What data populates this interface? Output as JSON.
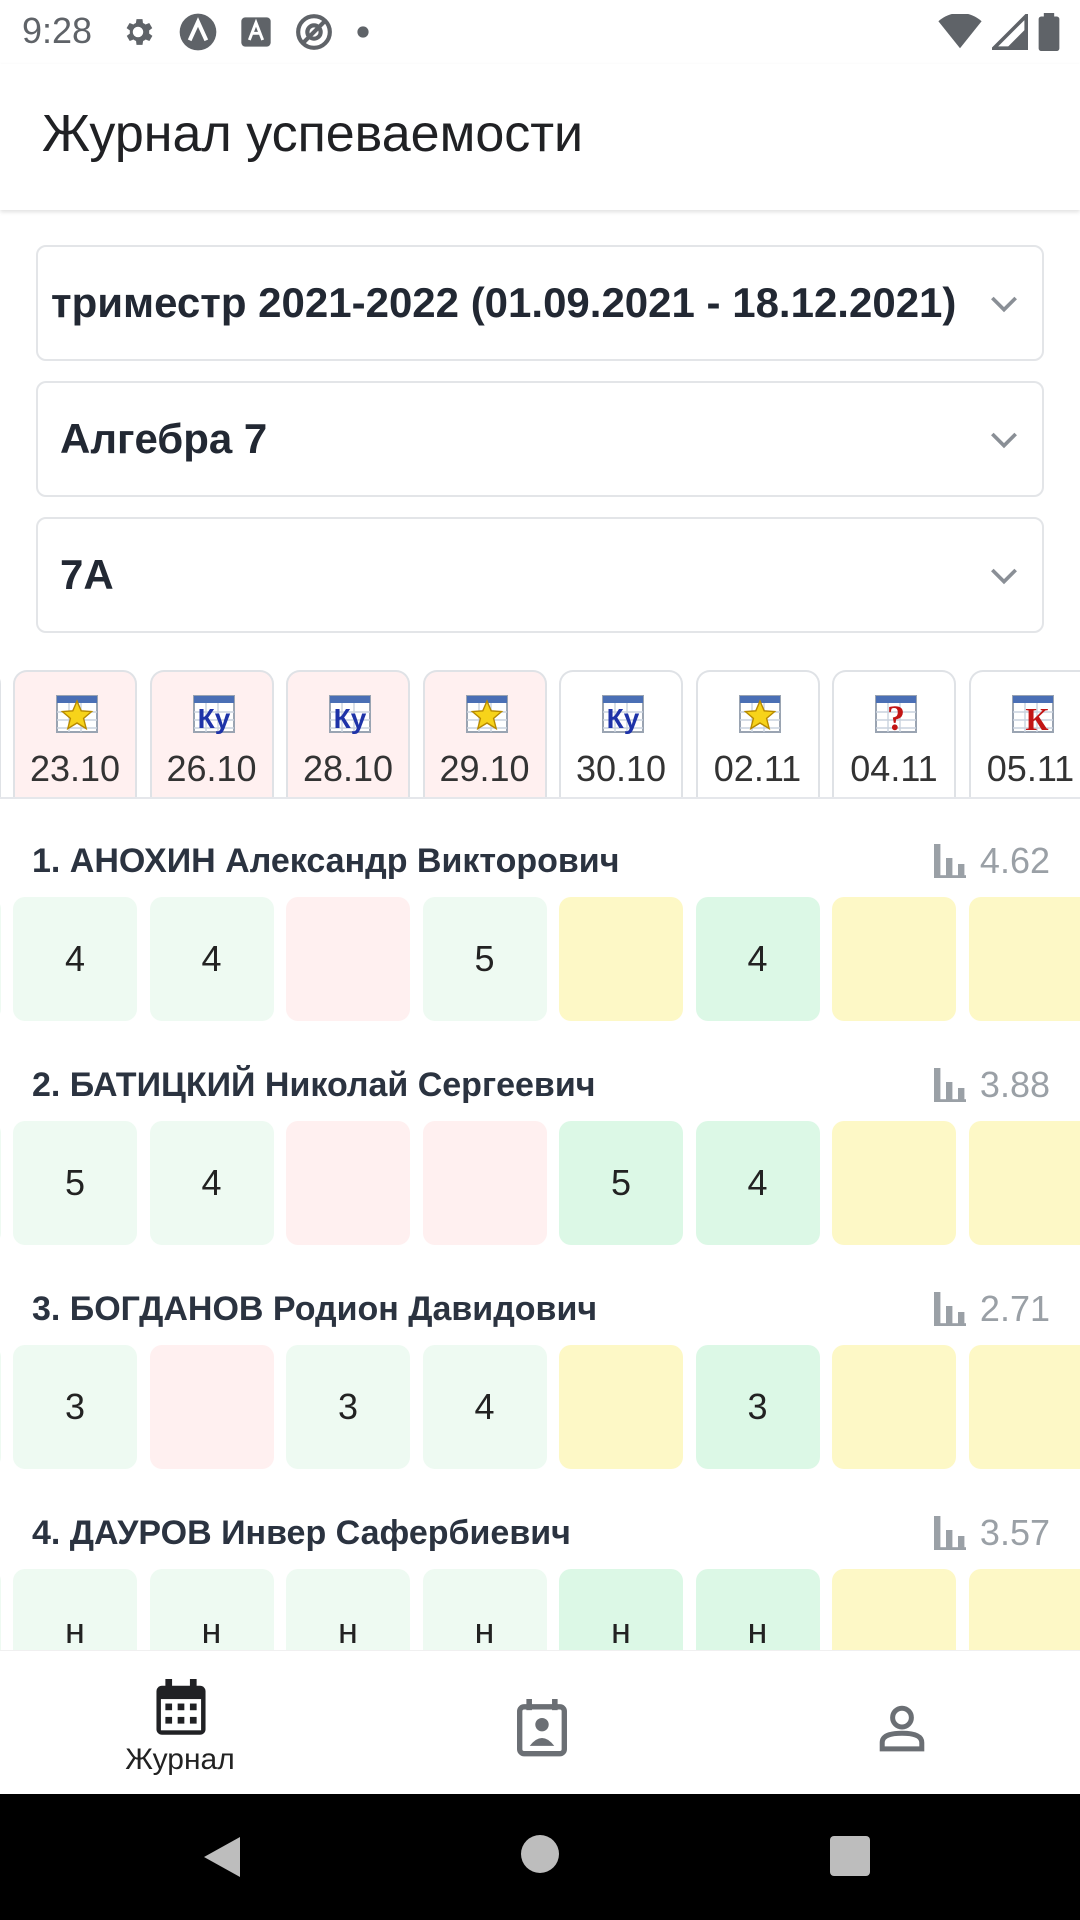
{
  "status_bar": {
    "time": "9:28",
    "icons_left": [
      "gear-icon",
      "arch-icon",
      "font-a-icon",
      "at-sign-icon",
      "dot-icon"
    ],
    "icons_right": [
      "wifi-icon",
      "signal-icon",
      "battery-icon"
    ]
  },
  "app_bar": {
    "title": "Журнал успеваемости"
  },
  "selects": {
    "period": "триместр 2021-2022 (01.09.2021 - 18.12.2021)",
    "subject": "Алгебра 7",
    "class": "7А"
  },
  "dates": [
    {
      "label": "23.10",
      "icon": "star-icon",
      "highlight": true
    },
    {
      "label": "26.10",
      "icon": "ku-icon",
      "highlight": true
    },
    {
      "label": "28.10",
      "icon": "ku-icon",
      "highlight": true
    },
    {
      "label": "29.10",
      "icon": "star-icon",
      "highlight": true
    },
    {
      "label": "30.10",
      "icon": "ku-icon",
      "highlight": false
    },
    {
      "label": "02.11",
      "icon": "star-icon",
      "highlight": false
    },
    {
      "label": "04.11",
      "icon": "question-icon",
      "highlight": false
    },
    {
      "label": "05.11",
      "icon": "k-icon",
      "highlight": false
    }
  ],
  "students": [
    {
      "name": "1. АНОХИН Александр Викторович",
      "avg": "4.62",
      "grades": [
        {
          "v": "4",
          "c": "lightgreen"
        },
        {
          "v": "4",
          "c": "lightgreen"
        },
        {
          "v": "",
          "c": "pink"
        },
        {
          "v": "5",
          "c": "lightgreen"
        },
        {
          "v": "",
          "c": "yellow"
        },
        {
          "v": "4",
          "c": "green"
        },
        {
          "v": "",
          "c": "yellow"
        },
        {
          "v": "",
          "c": "yellow"
        }
      ]
    },
    {
      "name": "2. БАТИЦКИЙ Николай Сергеевич",
      "avg": "3.88",
      "grades": [
        {
          "v": "5",
          "c": "lightgreen"
        },
        {
          "v": "4",
          "c": "lightgreen"
        },
        {
          "v": "",
          "c": "pink"
        },
        {
          "v": "",
          "c": "pink"
        },
        {
          "v": "5",
          "c": "green"
        },
        {
          "v": "4",
          "c": "green"
        },
        {
          "v": "",
          "c": "yellow"
        },
        {
          "v": "",
          "c": "yellow"
        }
      ]
    },
    {
      "name": "3. БОГДАНОВ Родион Давидович",
      "avg": "2.71",
      "grades": [
        {
          "v": "3",
          "c": "lightgreen"
        },
        {
          "v": "",
          "c": "pink"
        },
        {
          "v": "3",
          "c": "lightgreen"
        },
        {
          "v": "4",
          "c": "lightgreen"
        },
        {
          "v": "",
          "c": "yellow"
        },
        {
          "v": "3",
          "c": "green"
        },
        {
          "v": "",
          "c": "yellow"
        },
        {
          "v": "",
          "c": "yellow"
        }
      ]
    },
    {
      "name": "4. ДАУРОВ Инвер Сафербиевич",
      "avg": "3.57",
      "grades": [
        {
          "v": "н",
          "c": "lightgreen"
        },
        {
          "v": "н",
          "c": "lightgreen"
        },
        {
          "v": "н",
          "c": "lightgreen"
        },
        {
          "v": "н",
          "c": "lightgreen"
        },
        {
          "v": "н",
          "c": "green"
        },
        {
          "v": "н",
          "c": "green"
        },
        {
          "v": "",
          "c": "yellow"
        },
        {
          "v": "",
          "c": "yellow"
        }
      ]
    }
  ],
  "bottom_nav": [
    {
      "label": "Журнал",
      "icon": "calendar-icon",
      "active": true
    },
    {
      "label": "",
      "icon": "calendar-person-icon",
      "active": false
    },
    {
      "label": "",
      "icon": "person-icon",
      "active": false
    }
  ],
  "system_nav": [
    "back-icon",
    "home-icon",
    "recents-icon"
  ]
}
